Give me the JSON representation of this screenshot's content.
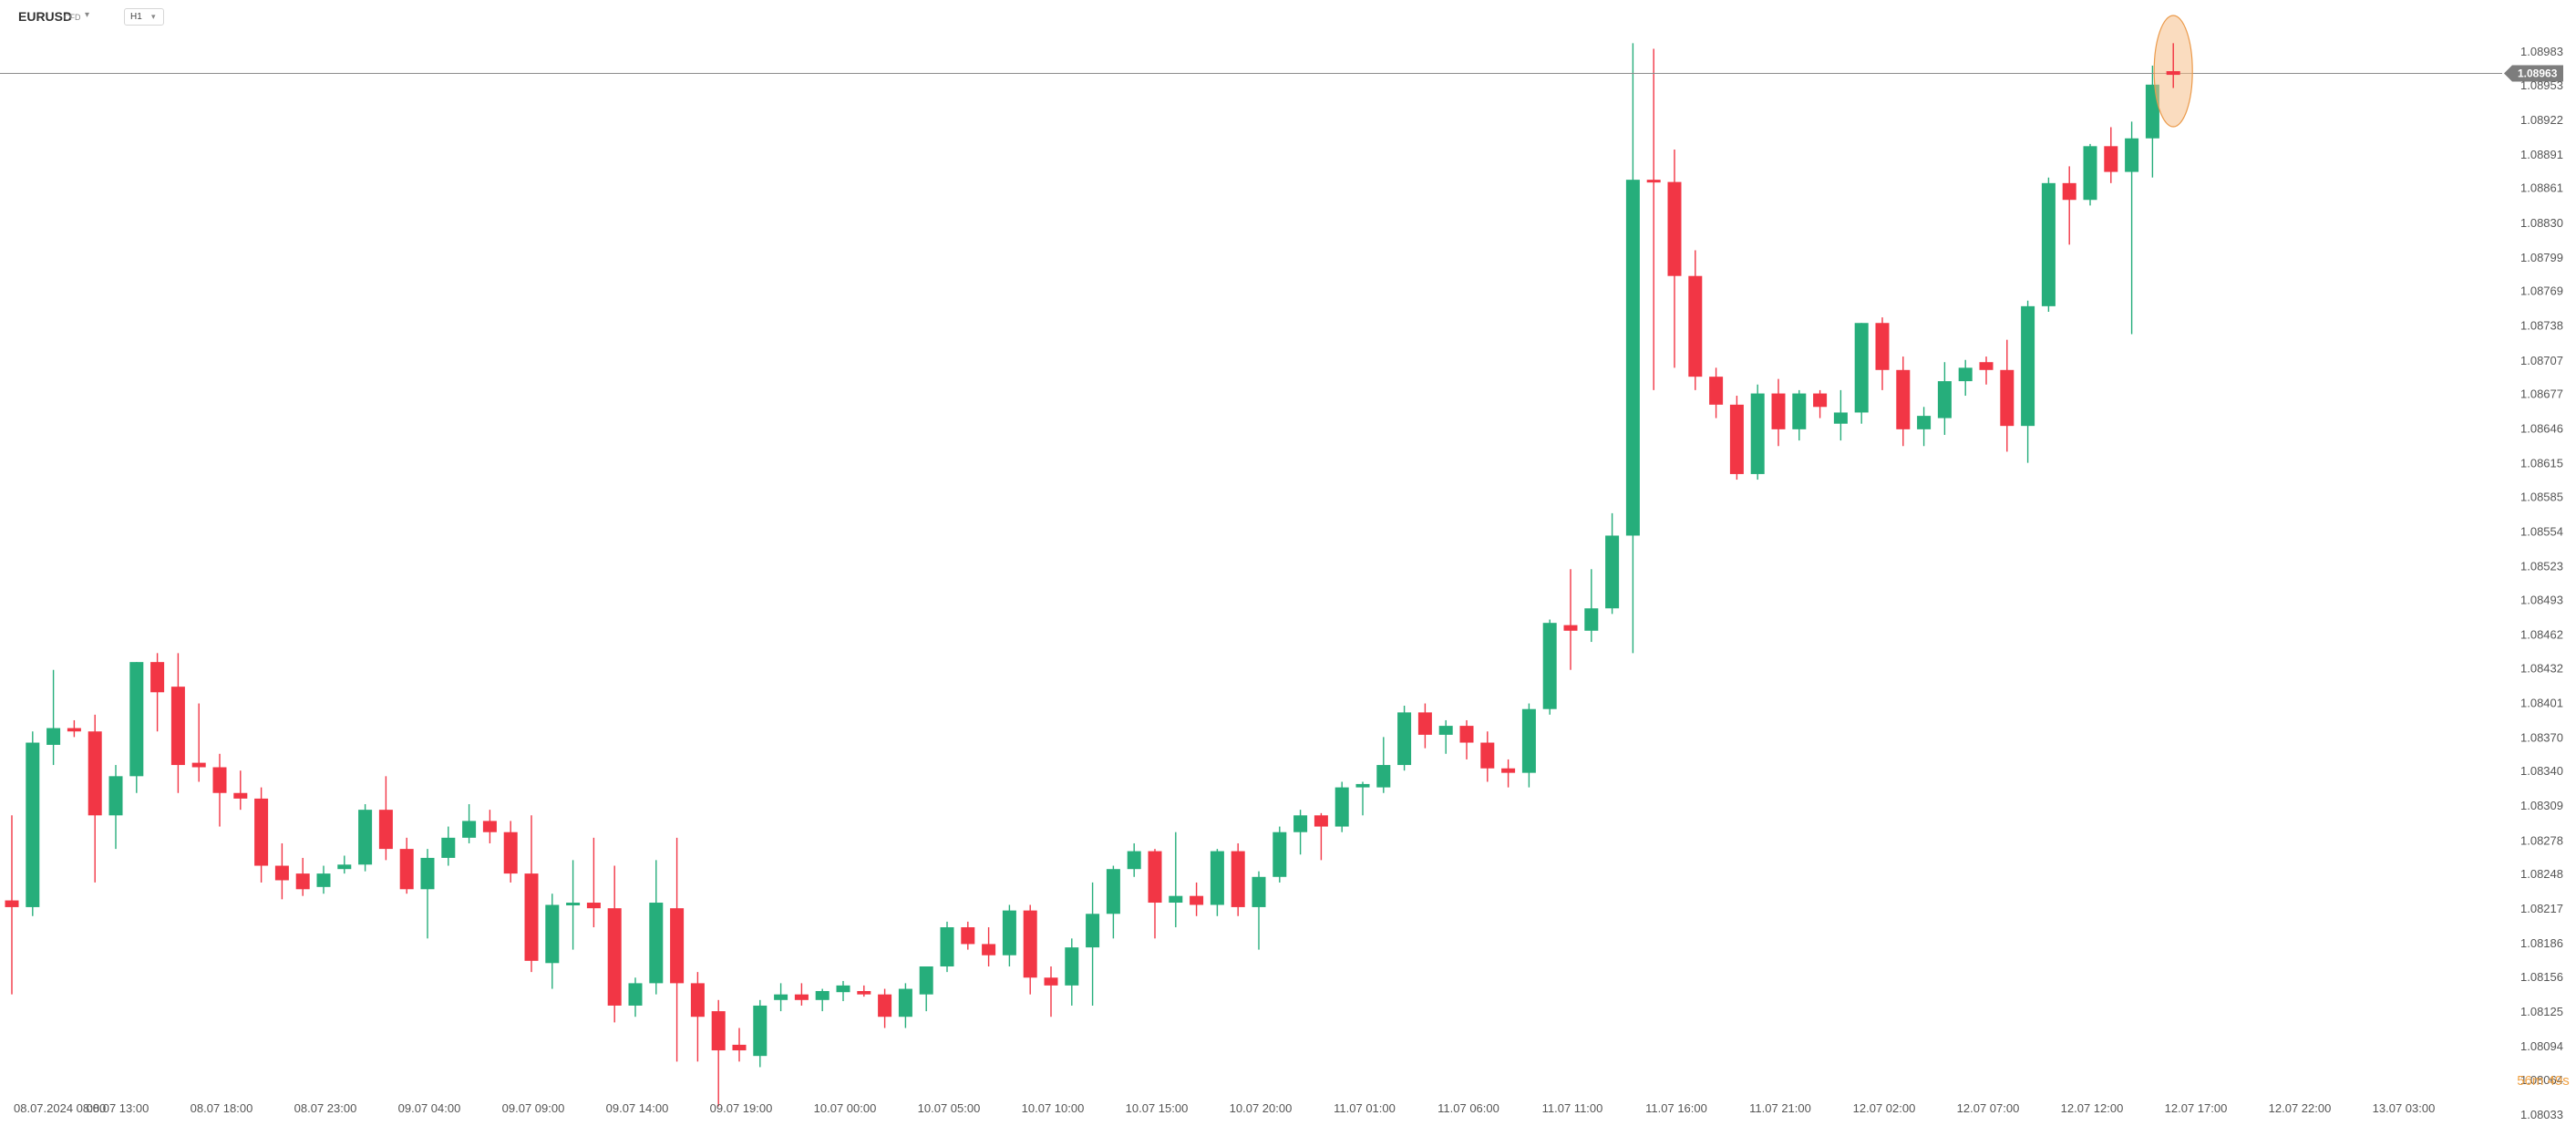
{
  "toolbar": {
    "symbol": "EURUSD",
    "symbol_type": "CFD",
    "timeframe": "H1",
    "dropdown_icon": "caret-down-icon"
  },
  "price_axis": {
    "current_price": "1.08963",
    "countdown": "56m 49s",
    "tick_labels": [
      "1.08983",
      "1.08953",
      "1.08922",
      "1.08891",
      "1.08861",
      "1.08830",
      "1.08799",
      "1.08769",
      "1.08738",
      "1.08707",
      "1.08677",
      "1.08646",
      "1.08615",
      "1.08585",
      "1.08554",
      "1.08523",
      "1.08493",
      "1.08462",
      "1.08432",
      "1.08401",
      "1.08370",
      "1.08340",
      "1.08309",
      "1.08278",
      "1.08248",
      "1.08217",
      "1.08186",
      "1.08156",
      "1.08125",
      "1.08094",
      "1.08064",
      "1.08033"
    ]
  },
  "colors": {
    "up": "#26ae7b",
    "down": "#f23645",
    "highlight": "#f5c08a"
  },
  "chart_data": {
    "type": "candlestick",
    "symbol": "EURUSD",
    "timeframe": "H1",
    "ylim": [
      1.08033,
      1.08983
    ],
    "x_tick_labels": [
      {
        "index": 0,
        "label": "08.07.2024 08:00"
      },
      {
        "index": 5,
        "label": "08.07 13:00"
      },
      {
        "index": 10,
        "label": "08.07 18:00"
      },
      {
        "index": 15,
        "label": "08.07 23:00"
      },
      {
        "index": 20,
        "label": "09.07 04:00"
      },
      {
        "index": 25,
        "label": "09.07 09:00"
      },
      {
        "index": 30,
        "label": "09.07 14:00"
      },
      {
        "index": 35,
        "label": "09.07 19:00"
      },
      {
        "index": 40,
        "label": "10.07 00:00"
      },
      {
        "index": 45,
        "label": "10.07 05:00"
      },
      {
        "index": 50,
        "label": "10.07 10:00"
      },
      {
        "index": 55,
        "label": "10.07 15:00"
      },
      {
        "index": 60,
        "label": "10.07 20:00"
      },
      {
        "index": 65,
        "label": "11.07 01:00"
      },
      {
        "index": 70,
        "label": "11.07 06:00"
      },
      {
        "index": 75,
        "label": "11.07 11:00"
      },
      {
        "index": 80,
        "label": "11.07 16:00"
      },
      {
        "index": 85,
        "label": "11.07 21:00"
      },
      {
        "index": 90,
        "label": "12.07 02:00"
      },
      {
        "index": 95,
        "label": "12.07 07:00"
      },
      {
        "index": 100,
        "label": "12.07 12:00"
      },
      {
        "index": 105,
        "label": "12.07 17:00"
      },
      {
        "index": 110,
        "label": "12.07 22:00"
      },
      {
        "index": 115,
        "label": "13.07 03:00"
      }
    ],
    "current_price": 1.08963,
    "candles": [
      {
        "o": 1.08224,
        "h": 1.083,
        "l": 1.0814,
        "c": 1.08218
      },
      {
        "o": 1.08218,
        "h": 1.08375,
        "l": 1.0821,
        "c": 1.08365
      },
      {
        "o": 1.08363,
        "h": 1.0843,
        "l": 1.08345,
        "c": 1.08378
      },
      {
        "o": 1.08378,
        "h": 1.08385,
        "l": 1.0837,
        "c": 1.08375
      },
      {
        "o": 1.08375,
        "h": 1.0839,
        "l": 1.0824,
        "c": 1.083
      },
      {
        "o": 1.083,
        "h": 1.08345,
        "l": 1.0827,
        "c": 1.08335
      },
      {
        "o": 1.08335,
        "h": 1.08437,
        "l": 1.0832,
        "c": 1.08437
      },
      {
        "o": 1.08437,
        "h": 1.08445,
        "l": 1.08375,
        "c": 1.0841
      },
      {
        "o": 1.08415,
        "h": 1.08445,
        "l": 1.0832,
        "c": 1.08345
      },
      {
        "o": 1.08347,
        "h": 1.084,
        "l": 1.0833,
        "c": 1.08343
      },
      {
        "o": 1.08343,
        "h": 1.08355,
        "l": 1.0829,
        "c": 1.0832
      },
      {
        "o": 1.0832,
        "h": 1.0834,
        "l": 1.08305,
        "c": 1.08315
      },
      {
        "o": 1.08315,
        "h": 1.08325,
        "l": 1.0824,
        "c": 1.08255
      },
      {
        "o": 1.08255,
        "h": 1.08275,
        "l": 1.08225,
        "c": 1.08242
      },
      {
        "o": 1.08248,
        "h": 1.08262,
        "l": 1.08228,
        "c": 1.08234
      },
      {
        "o": 1.08236,
        "h": 1.08255,
        "l": 1.0823,
        "c": 1.08248
      },
      {
        "o": 1.08252,
        "h": 1.08264,
        "l": 1.08248,
        "c": 1.08256
      },
      {
        "o": 1.08256,
        "h": 1.0831,
        "l": 1.0825,
        "c": 1.08305
      },
      {
        "o": 1.08305,
        "h": 1.08335,
        "l": 1.0826,
        "c": 1.0827
      },
      {
        "o": 1.0827,
        "h": 1.0828,
        "l": 1.0823,
        "c": 1.08234
      },
      {
        "o": 1.08234,
        "h": 1.0827,
        "l": 1.0819,
        "c": 1.08262
      },
      {
        "o": 1.08262,
        "h": 1.0829,
        "l": 1.08255,
        "c": 1.0828
      },
      {
        "o": 1.0828,
        "h": 1.0831,
        "l": 1.08275,
        "c": 1.08295
      },
      {
        "o": 1.08295,
        "h": 1.08305,
        "l": 1.08275,
        "c": 1.08285
      },
      {
        "o": 1.08285,
        "h": 1.08295,
        "l": 1.0824,
        "c": 1.08248
      },
      {
        "o": 1.08248,
        "h": 1.083,
        "l": 1.0816,
        "c": 1.0817
      },
      {
        "o": 1.08168,
        "h": 1.0823,
        "l": 1.08145,
        "c": 1.0822
      },
      {
        "o": 1.0822,
        "h": 1.0826,
        "l": 1.0818,
        "c": 1.08222
      },
      {
        "o": 1.08222,
        "h": 1.0828,
        "l": 1.082,
        "c": 1.08217
      },
      {
        "o": 1.08217,
        "h": 1.08255,
        "l": 1.08115,
        "c": 1.0813
      },
      {
        "o": 1.0813,
        "h": 1.08155,
        "l": 1.0812,
        "c": 1.0815
      },
      {
        "o": 1.0815,
        "h": 1.0826,
        "l": 1.0814,
        "c": 1.08222
      },
      {
        "o": 1.08217,
        "h": 1.0828,
        "l": 1.0808,
        "c": 1.0815
      },
      {
        "o": 1.0815,
        "h": 1.0816,
        "l": 1.0808,
        "c": 1.0812
      },
      {
        "o": 1.08125,
        "h": 1.08135,
        "l": 1.0804,
        "c": 1.0809
      },
      {
        "o": 1.08095,
        "h": 1.0811,
        "l": 1.0808,
        "c": 1.0809
      },
      {
        "o": 1.08085,
        "h": 1.08135,
        "l": 1.08075,
        "c": 1.0813
      },
      {
        "o": 1.08135,
        "h": 1.0815,
        "l": 1.08125,
        "c": 1.0814
      },
      {
        "o": 1.0814,
        "h": 1.0815,
        "l": 1.0813,
        "c": 1.08135
      },
      {
        "o": 1.08135,
        "h": 1.08145,
        "l": 1.08125,
        "c": 1.08143
      },
      {
        "o": 1.08142,
        "h": 1.08152,
        "l": 1.08134,
        "c": 1.08148
      },
      {
        "o": 1.08143,
        "h": 1.08148,
        "l": 1.08138,
        "c": 1.0814
      },
      {
        "o": 1.0814,
        "h": 1.08145,
        "l": 1.0811,
        "c": 1.0812
      },
      {
        "o": 1.0812,
        "h": 1.0815,
        "l": 1.0811,
        "c": 1.08145
      },
      {
        "o": 1.0814,
        "h": 1.08165,
        "l": 1.08125,
        "c": 1.08165
      },
      {
        "o": 1.08165,
        "h": 1.08205,
        "l": 1.0816,
        "c": 1.082
      },
      {
        "o": 1.082,
        "h": 1.08205,
        "l": 1.0818,
        "c": 1.08185
      },
      {
        "o": 1.08185,
        "h": 1.082,
        "l": 1.08165,
        "c": 1.08175
      },
      {
        "o": 1.08175,
        "h": 1.0822,
        "l": 1.08165,
        "c": 1.08215
      },
      {
        "o": 1.08215,
        "h": 1.0822,
        "l": 1.0814,
        "c": 1.08155
      },
      {
        "o": 1.08155,
        "h": 1.08165,
        "l": 1.0812,
        "c": 1.08148
      },
      {
        "o": 1.08148,
        "h": 1.0819,
        "l": 1.0813,
        "c": 1.08182
      },
      {
        "o": 1.08182,
        "h": 1.0824,
        "l": 1.0813,
        "c": 1.08212
      },
      {
        "o": 1.08212,
        "h": 1.08255,
        "l": 1.0819,
        "c": 1.08252
      },
      {
        "o": 1.08252,
        "h": 1.08275,
        "l": 1.08245,
        "c": 1.08268
      },
      {
        "o": 1.08268,
        "h": 1.0827,
        "l": 1.0819,
        "c": 1.08222
      },
      {
        "o": 1.08222,
        "h": 1.08285,
        "l": 1.082,
        "c": 1.08228
      },
      {
        "o": 1.08228,
        "h": 1.0824,
        "l": 1.0821,
        "c": 1.0822
      },
      {
        "o": 1.0822,
        "h": 1.0827,
        "l": 1.0821,
        "c": 1.08268
      },
      {
        "o": 1.08268,
        "h": 1.08275,
        "l": 1.0821,
        "c": 1.08218
      },
      {
        "o": 1.08218,
        "h": 1.0825,
        "l": 1.0818,
        "c": 1.08245
      },
      {
        "o": 1.08245,
        "h": 1.0829,
        "l": 1.0824,
        "c": 1.08285
      },
      {
        "o": 1.08285,
        "h": 1.08305,
        "l": 1.08265,
        "c": 1.083
      },
      {
        "o": 1.083,
        "h": 1.08302,
        "l": 1.0826,
        "c": 1.0829
      },
      {
        "o": 1.0829,
        "h": 1.0833,
        "l": 1.08285,
        "c": 1.08325
      },
      {
        "o": 1.08325,
        "h": 1.0833,
        "l": 1.083,
        "c": 1.08328
      },
      {
        "o": 1.08325,
        "h": 1.0837,
        "l": 1.0832,
        "c": 1.08345
      },
      {
        "o": 1.08345,
        "h": 1.08398,
        "l": 1.0834,
        "c": 1.08392
      },
      {
        "o": 1.08392,
        "h": 1.084,
        "l": 1.0836,
        "c": 1.08372
      },
      {
        "o": 1.08372,
        "h": 1.08385,
        "l": 1.08355,
        "c": 1.0838
      },
      {
        "o": 1.0838,
        "h": 1.08385,
        "l": 1.0835,
        "c": 1.08365
      },
      {
        "o": 1.08365,
        "h": 1.08375,
        "l": 1.0833,
        "c": 1.08342
      },
      {
        "o": 1.08342,
        "h": 1.0835,
        "l": 1.08325,
        "c": 1.08338
      },
      {
        "o": 1.08338,
        "h": 1.084,
        "l": 1.08325,
        "c": 1.08395
      },
      {
        "o": 1.08395,
        "h": 1.08475,
        "l": 1.0839,
        "c": 1.08472
      },
      {
        "o": 1.0847,
        "h": 1.0852,
        "l": 1.0843,
        "c": 1.08465
      },
      {
        "o": 1.08465,
        "h": 1.0852,
        "l": 1.08455,
        "c": 1.08485
      },
      {
        "o": 1.08485,
        "h": 1.0857,
        "l": 1.0848,
        "c": 1.0855
      },
      {
        "o": 1.0855,
        "h": 1.0899,
        "l": 1.08445,
        "c": 1.08868
      },
      {
        "o": 1.08868,
        "h": 1.08985,
        "l": 1.0868,
        "c": 1.08866
      },
      {
        "o": 1.08866,
        "h": 1.08895,
        "l": 1.087,
        "c": 1.08782
      },
      {
        "o": 1.08782,
        "h": 1.08805,
        "l": 1.0868,
        "c": 1.08692
      },
      {
        "o": 1.08692,
        "h": 1.087,
        "l": 1.08655,
        "c": 1.08667
      },
      {
        "o": 1.08667,
        "h": 1.08675,
        "l": 1.086,
        "c": 1.08605
      },
      {
        "o": 1.08605,
        "h": 1.08685,
        "l": 1.086,
        "c": 1.08677
      },
      {
        "o": 1.08677,
        "h": 1.0869,
        "l": 1.0863,
        "c": 1.08645
      },
      {
        "o": 1.08645,
        "h": 1.0868,
        "l": 1.08635,
        "c": 1.08677
      },
      {
        "o": 1.08677,
        "h": 1.0868,
        "l": 1.08655,
        "c": 1.08665
      },
      {
        "o": 1.0865,
        "h": 1.0868,
        "l": 1.08635,
        "c": 1.0866
      },
      {
        "o": 1.0866,
        "h": 1.0874,
        "l": 1.0865,
        "c": 1.0874
      },
      {
        "o": 1.0874,
        "h": 1.08745,
        "l": 1.0868,
        "c": 1.08698
      },
      {
        "o": 1.08698,
        "h": 1.0871,
        "l": 1.0863,
        "c": 1.08645
      },
      {
        "o": 1.08645,
        "h": 1.08665,
        "l": 1.0863,
        "c": 1.08657
      },
      {
        "o": 1.08655,
        "h": 1.08705,
        "l": 1.0864,
        "c": 1.08688
      },
      {
        "o": 1.08688,
        "h": 1.08707,
        "l": 1.08675,
        "c": 1.087
      },
      {
        "o": 1.08705,
        "h": 1.0871,
        "l": 1.08685,
        "c": 1.08698
      },
      {
        "o": 1.08698,
        "h": 1.08725,
        "l": 1.08625,
        "c": 1.08648
      },
      {
        "o": 1.08648,
        "h": 1.0876,
        "l": 1.08615,
        "c": 1.08755
      },
      {
        "o": 1.08755,
        "h": 1.0887,
        "l": 1.0875,
        "c": 1.08865
      },
      {
        "o": 1.08865,
        "h": 1.0888,
        "l": 1.0881,
        "c": 1.0885
      },
      {
        "o": 1.0885,
        "h": 1.089,
        "l": 1.08845,
        "c": 1.08898
      },
      {
        "o": 1.08898,
        "h": 1.08915,
        "l": 1.08865,
        "c": 1.08875
      },
      {
        "o": 1.08875,
        "h": 1.0892,
        "l": 1.0873,
        "c": 1.08905
      },
      {
        "o": 1.08905,
        "h": 1.0897,
        "l": 1.0887,
        "c": 1.08953
      },
      {
        "o": 1.08965,
        "h": 1.0899,
        "l": 1.0895,
        "c": 1.08963
      }
    ]
  }
}
